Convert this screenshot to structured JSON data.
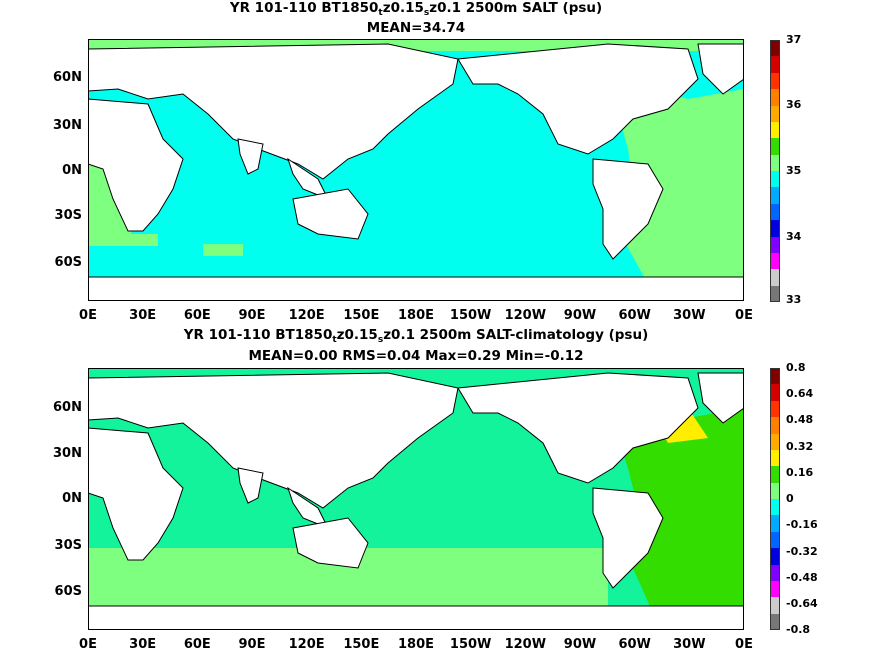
{
  "panel1": {
    "title_pre": "YR 101-110 BT1850",
    "title_sub1": "t",
    "title_mid": "z0.15",
    "title_sub2": "s",
    "title_post": "z0.1 2500m SALT (psu)",
    "stats": "MEAN=34.74",
    "colorbar_labels": [
      "37",
      "36",
      "35",
      "34",
      "33"
    ],
    "colorbar_colors": [
      "#7f0000",
      "#d40000",
      "#ff3300",
      "#ff7f00",
      "#ffaa00",
      "#ffee00",
      "#33dd00",
      "#7fff7f",
      "#00ffee",
      "#00aaff",
      "#0066ff",
      "#0000dd",
      "#7f00ff",
      "#ff00ff",
      "#cccccc",
      "#777777"
    ]
  },
  "panel2": {
    "title_pre": "YR 101-110 BT1850",
    "title_sub1": "t",
    "title_mid": "z0.15",
    "title_sub2": "s",
    "title_post": "z0.1 2500m SALT-climatology (psu)",
    "stats": "MEAN=0.00   RMS=0.04   Max=0.29   Min=-0.12",
    "colorbar_labels": [
      "0.8",
      "0.64",
      "0.48",
      "0.32",
      "0.16",
      "0",
      "-0.16",
      "-0.32",
      "-0.48",
      "-0.64",
      "-0.8"
    ],
    "colorbar_colors": [
      "#7f0000",
      "#d40000",
      "#ff3300",
      "#ff7f00",
      "#ffaa00",
      "#ffee00",
      "#33dd00",
      "#7fff7f",
      "#00ffee",
      "#00aaff",
      "#0066ff",
      "#0000dd",
      "#7f00ff",
      "#ff00ff",
      "#cccccc",
      "#777777"
    ]
  },
  "axes": {
    "y_labels": [
      "60N",
      "30N",
      "0N",
      "30S",
      "60S"
    ],
    "x_labels": [
      "0E",
      "30E",
      "60E",
      "90E",
      "120E",
      "150E",
      "180E",
      "150W",
      "120W",
      "90W",
      "60W",
      "30W",
      "0E"
    ]
  },
  "colors": {
    "land": "#ffffff",
    "ocean_35": "#00ffee",
    "ocean_35_5": "#7fff7f",
    "anomaly_pos": "#33dd00",
    "anomaly_high": "#ffee00"
  }
}
